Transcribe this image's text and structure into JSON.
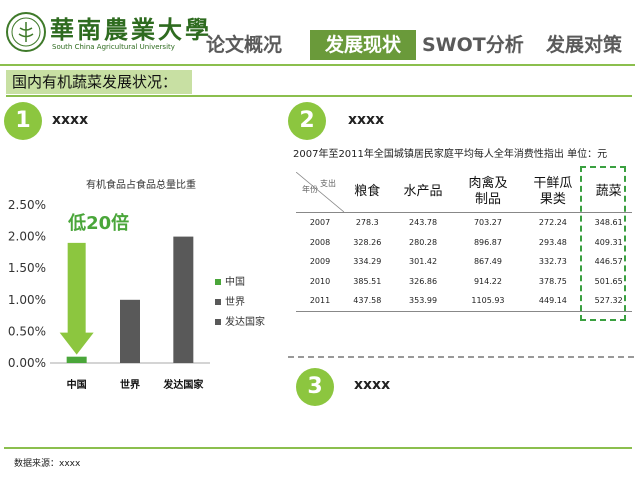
{
  "header": {
    "logo_cn": "華南農業大學",
    "logo_en": "South China Agricultural University",
    "tabs": [
      {
        "label": "论文概况",
        "active": false
      },
      {
        "label": "发展现状",
        "active": true
      },
      {
        "label": "SWOT分析",
        "active": false
      },
      {
        "label": "发展对策",
        "active": false
      }
    ]
  },
  "section": {
    "title": "国内有机蔬菜发展状况："
  },
  "items": [
    {
      "num": "1",
      "text": "xxxx"
    },
    {
      "num": "2",
      "text": "xxxx"
    },
    {
      "num": "3",
      "text": "xxxx"
    }
  ],
  "chart_data": {
    "type": "bar",
    "title": "有机食品占食品总量比重",
    "categories": [
      "中国",
      "世界",
      "发达国家"
    ],
    "values": [
      0.1,
      1.0,
      2.0
    ],
    "yticks": [
      "0.00%",
      "0.50%",
      "1.00%",
      "1.50%",
      "2.00%",
      "2.50%"
    ],
    "ylim": [
      0,
      2.5
    ],
    "colors": [
      "#4aa63a",
      "#595959",
      "#595959"
    ],
    "legend": [
      {
        "name": "中国",
        "color": "#4aa63a"
      },
      {
        "name": "世界",
        "color": "#595959"
      },
      {
        "name": "发达国家",
        "color": "#595959"
      }
    ],
    "legend_position": "right",
    "annotation": "低20倍",
    "annotation_color": "#4aa63a"
  },
  "table": {
    "title": "2007年至2011年全国城镇居民家庭平均每人全年消费性指出  单位：元",
    "corner_top": "支出",
    "corner_bottom": "年份",
    "headers": [
      "粮食",
      "水产品",
      "肉禽及\n制品",
      "干鲜瓜\n果类",
      "蔬菜"
    ],
    "rows": [
      [
        "2007",
        "278.3",
        "243.78",
        "703.27",
        "272.24",
        "348.61"
      ],
      [
        "2008",
        "328.26",
        "280.28",
        "896.87",
        "293.48",
        "409.31"
      ],
      [
        "2009",
        "334.29",
        "301.42",
        "867.49",
        "332.73",
        "446.57"
      ],
      [
        "2010",
        "385.51",
        "326.86",
        "914.22",
        "378.75",
        "501.65"
      ],
      [
        "2011",
        "437.58",
        "353.99",
        "1105.93",
        "449.14",
        "527.32"
      ]
    ]
  },
  "footer": {
    "source": "数据来源：xxxx"
  }
}
